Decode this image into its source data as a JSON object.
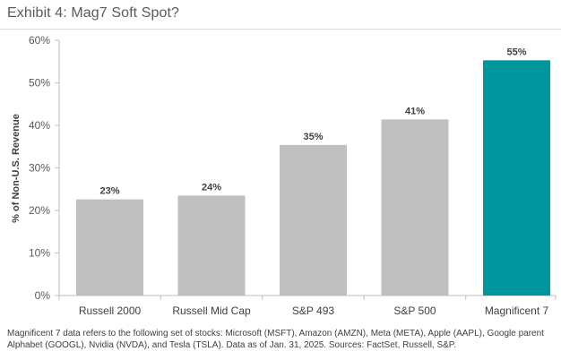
{
  "header": {
    "title": "Exhibit 4: Mag7 Soft Spot?"
  },
  "chart_data": {
    "type": "bar",
    "title": "Exhibit 4: Mag7 Soft Spot?",
    "ylabel": "% of Non-U.S. Revenue",
    "xlabel": "",
    "ylim": [
      0,
      60
    ],
    "yticks": [
      0,
      10,
      20,
      30,
      40,
      50,
      60
    ],
    "ytick_labels": [
      "0%",
      "10%",
      "20%",
      "30%",
      "40%",
      "50%",
      "60%"
    ],
    "categories": [
      "Russell 2000",
      "Russell Mid Cap",
      "S&P 493",
      "S&P 500",
      "Magnificent 7"
    ],
    "values": [
      23,
      24,
      35,
      41,
      55
    ],
    "value_labels": [
      "23%",
      "24%",
      "35%",
      "41%",
      "55%"
    ],
    "plotted_values": [
      22.6,
      23.5,
      35.4,
      41.4,
      55.3
    ],
    "colors": [
      "#bfbfbf",
      "#bfbfbf",
      "#bfbfbf",
      "#bfbfbf",
      "#00969e"
    ],
    "grid": false
  },
  "footnote": {
    "text": "Magnificent 7 data refers to the following set of stocks: Microsoft (MSFT), Amazon (AMZN), Meta (META), Apple (AAPL), Google parent Alphabet (GOOGL), Nvidia (NVDA), and Tesla (TSLA). Data as of Jan. 31, 2025. Sources: FactSet, Russell, S&P."
  }
}
